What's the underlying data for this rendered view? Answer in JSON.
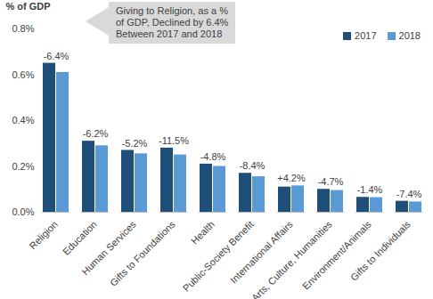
{
  "chart_data": {
    "type": "bar",
    "y_label": "% of GDP",
    "categories": [
      "Religion",
      "Education",
      "Human Services",
      "Gifts to Foundations",
      "Health",
      "Public-Society Benefit",
      "International Affairs",
      "Arts, Culture, Humanities",
      "Environment/Animals",
      "Gifts to Individuals"
    ],
    "series": [
      {
        "name": "2017",
        "color": "#1f4e79",
        "values": [
          0.65,
          0.31,
          0.27,
          0.28,
          0.21,
          0.17,
          0.11,
          0.1,
          0.065,
          0.048
        ]
      },
      {
        "name": "2018",
        "color": "#5b9bd5",
        "values": [
          0.61,
          0.29,
          0.255,
          0.25,
          0.2,
          0.155,
          0.115,
          0.095,
          0.064,
          0.045
        ]
      }
    ],
    "change_labels": [
      "-6.4%",
      "-6.2%",
      "-5.2%",
      "-11.5%",
      "-4.8%",
      "-8.4%",
      "+4.2%",
      "-4.7%",
      "-1.4%",
      "-7.4%"
    ],
    "annotation": [
      "Giving to Religion, as a %",
      "of GDP, Declined by 6.4%",
      "Between 2017 and 2018"
    ],
    "ylim": [
      0,
      0.8
    ],
    "yticks": [
      {
        "value": 0,
        "label": "0.0%"
      },
      {
        "value": 0.2,
        "label": "0.2%"
      },
      {
        "value": 0.4,
        "label": "0.4%"
      },
      {
        "value": 0.6,
        "label": "0.6%"
      },
      {
        "value": 0.8,
        "label": "0.8%"
      }
    ],
    "grid": false,
    "legend": "top-right"
  }
}
